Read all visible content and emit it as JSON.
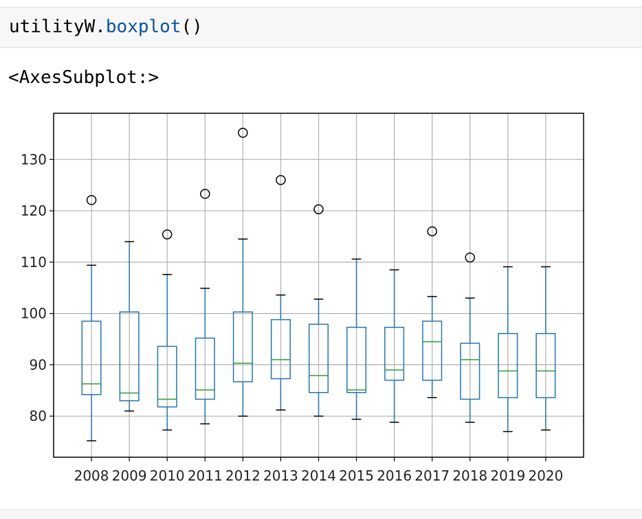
{
  "input_cell": {
    "code_object": "utilityW.",
    "code_method": "boxplot",
    "code_parens": "()"
  },
  "output": {
    "repr_text": "<AxesSubplot:>"
  },
  "colors": {
    "box": "#1f77b4",
    "median": "#2ca02c",
    "whisker_cap": "#000000",
    "flier_edge": "#000000",
    "grid": "#b0b0b0",
    "cell_background": "#f7f7f7",
    "method_text": "#0055aa"
  },
  "chart_data": {
    "type": "boxplot",
    "title": "",
    "xlabel": "",
    "ylabel": "",
    "grid": true,
    "ylim": [
      72,
      139
    ],
    "yticks": [
      80,
      90,
      100,
      110,
      120,
      130
    ],
    "categories": [
      "2008",
      "2009",
      "2010",
      "2011",
      "2012",
      "2013",
      "2014",
      "2015",
      "2016",
      "2017",
      "2018",
      "2019",
      "2020"
    ],
    "boxes": [
      {
        "label": "2008",
        "whisker_low": 75.2,
        "q1": 84.2,
        "median": 86.3,
        "q3": 98.5,
        "whisker_high": 109.4,
        "fliers": [
          122.1
        ]
      },
      {
        "label": "2009",
        "whisker_low": 81.0,
        "q1": 83.0,
        "median": 84.5,
        "q3": 100.3,
        "whisker_high": 114.0,
        "fliers": []
      },
      {
        "label": "2010",
        "whisker_low": 77.3,
        "q1": 81.8,
        "median": 83.3,
        "q3": 93.6,
        "whisker_high": 107.6,
        "fliers": [
          115.4
        ]
      },
      {
        "label": "2011",
        "whisker_low": 78.5,
        "q1": 83.3,
        "median": 85.1,
        "q3": 95.2,
        "whisker_high": 104.9,
        "fliers": [
          123.3
        ]
      },
      {
        "label": "2012",
        "whisker_low": 80.0,
        "q1": 86.7,
        "median": 90.3,
        "q3": 100.3,
        "whisker_high": 114.5,
        "fliers": [
          135.2
        ]
      },
      {
        "label": "2013",
        "whisker_low": 81.2,
        "q1": 87.3,
        "median": 91.0,
        "q3": 98.8,
        "whisker_high": 103.6,
        "fliers": [
          126.0
        ]
      },
      {
        "label": "2014",
        "whisker_low": 80.0,
        "q1": 84.6,
        "median": 87.9,
        "q3": 97.9,
        "whisker_high": 102.8,
        "fliers": [
          120.3
        ]
      },
      {
        "label": "2015",
        "whisker_low": 79.4,
        "q1": 84.6,
        "median": 85.1,
        "q3": 97.3,
        "whisker_high": 110.6,
        "fliers": []
      },
      {
        "label": "2016",
        "whisker_low": 78.8,
        "q1": 87.0,
        "median": 89.0,
        "q3": 97.3,
        "whisker_high": 108.5,
        "fliers": []
      },
      {
        "label": "2017",
        "whisker_low": 83.6,
        "q1": 87.0,
        "median": 94.5,
        "q3": 98.5,
        "whisker_high": 103.3,
        "fliers": [
          116.0
        ]
      },
      {
        "label": "2018",
        "whisker_low": 78.8,
        "q1": 83.3,
        "median": 91.0,
        "q3": 94.2,
        "whisker_high": 103.0,
        "fliers": [
          110.9
        ]
      },
      {
        "label": "2019",
        "whisker_low": 77.0,
        "q1": 83.6,
        "median": 88.8,
        "q3": 96.1,
        "whisker_high": 109.1,
        "fliers": []
      },
      {
        "label": "2020",
        "whisker_low": 77.3,
        "q1": 83.6,
        "median": 88.8,
        "q3": 96.1,
        "whisker_high": 109.1,
        "fliers": []
      }
    ]
  }
}
